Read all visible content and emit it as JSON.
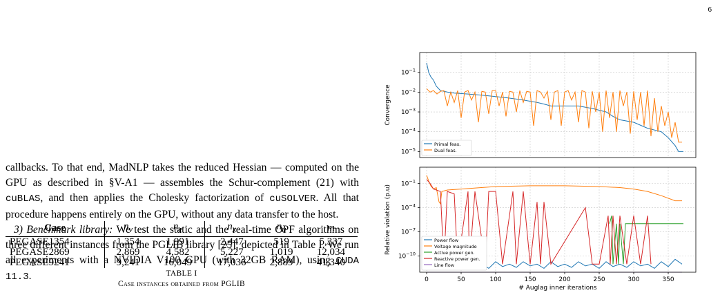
{
  "page_number": "6",
  "text": {
    "p1": [
      {
        "t": "callbacks. To that end, MadNLP takes the reduced Hessian — computed on the GPU as described in §V-A1 — assembles the Schur-complement (21) with "
      },
      {
        "t": "cuBLAS",
        "mono": true
      },
      {
        "t": ", and then applies the Cholesky factorization of "
      },
      {
        "t": "cuSOLVER",
        "mono": true
      },
      {
        "t": ". All that procedure happens entirely on the GPU, without any data transfer to the host."
      }
    ],
    "p2_heading": "3) Benchmark library:",
    "p2": [
      {
        "t": " We test the static and the real-time OPF algorithms on three different instances from the PGLIB library [25], depicted in Table I. We run all experiments with a NVIDIA V100 GPU (with 32GB RAM), using "
      },
      {
        "t": "CUDA 11.3",
        "mono": true
      },
      {
        "t": "."
      }
    ]
  },
  "table": {
    "headers": [
      "Case",
      "n_v",
      "n_e",
      "n_x",
      "n_u",
      "m"
    ],
    "header_display": [
      {
        "base": "Case",
        "sub": ""
      },
      {
        "base": "n",
        "sub": "v"
      },
      {
        "base": "n",
        "sub": "e"
      },
      {
        "base": "n",
        "sub": "x"
      },
      {
        "base": "n",
        "sub": "u"
      },
      {
        "base": "m",
        "sub": ""
      }
    ],
    "rows": [
      [
        "PEGASE1354",
        "1,354",
        "1,991",
        "2,447",
        "519",
        "5,337"
      ],
      [
        "PEGASE2869",
        "2,869",
        "4,582",
        "5,227",
        "1,019",
        "12,034"
      ],
      [
        "PEGASE9241",
        "9,241",
        "16,049",
        "17,036",
        "2,889",
        "41,340"
      ]
    ],
    "caption_label": "TABLE I",
    "caption_text": "Case instances obtained from PGLIB"
  },
  "chart_data": [
    {
      "type": "line",
      "title": "",
      "xlabel": "",
      "ylabel": "Convergence",
      "y_scale": "log",
      "ylim": [
        5e-06,
        1
      ],
      "xlim": [
        -10,
        390
      ],
      "y_ticks": [
        {
          "v": 0.1,
          "base": "10",
          "exp": "−1"
        },
        {
          "v": 0.01,
          "base": "10",
          "exp": "−2"
        },
        {
          "v": 0.001,
          "base": "10",
          "exp": "−3"
        },
        {
          "v": 0.0001,
          "base": "10",
          "exp": "−4"
        },
        {
          "v": 1e-05,
          "base": "10",
          "exp": "−5"
        }
      ],
      "grid": true,
      "legend_position": "bottom-left",
      "series": [
        {
          "name": "Primal feas.",
          "color": "#1f77b4",
          "x": [
            0,
            3,
            6,
            10,
            14,
            20,
            30,
            40,
            60,
            80,
            100,
            120,
            140,
            160,
            170,
            180,
            200,
            220,
            240,
            260,
            270,
            280,
            300,
            320,
            340,
            350,
            360,
            365,
            370,
            372
          ],
          "y": [
            0.3,
            0.1,
            0.06,
            0.04,
            0.02,
            0.012,
            0.01,
            0.009,
            0.008,
            0.007,
            0.006,
            0.005,
            0.004,
            0.003,
            0.0025,
            0.002,
            0.002,
            0.002,
            0.0015,
            0.001,
            0.0006,
            0.0004,
            0.0003,
            0.00015,
            0.0001,
            5e-05,
            2e-05,
            1e-05,
            1e-05,
            1e-05
          ]
        },
        {
          "name": "Dual feas.",
          "color": "#ff7f0e",
          "x": [
            0,
            5,
            10,
            15,
            20,
            25,
            30,
            35,
            40,
            45,
            50,
            55,
            60,
            65,
            70,
            75,
            80,
            85,
            90,
            95,
            100,
            105,
            110,
            115,
            120,
            125,
            130,
            135,
            140,
            145,
            150,
            155,
            160,
            165,
            170,
            175,
            180,
            185,
            190,
            195,
            200,
            205,
            210,
            215,
            220,
            225,
            230,
            235,
            240,
            245,
            250,
            255,
            260,
            265,
            270,
            275,
            280,
            285,
            290,
            295,
            300,
            305,
            310,
            315,
            320,
            325,
            330,
            335,
            340,
            345,
            350,
            355,
            360,
            365,
            370
          ],
          "y": [
            0.015,
            0.01,
            0.012,
            0.008,
            0.011,
            0.012,
            0.002,
            0.01,
            0.003,
            0.012,
            0.0005,
            0.01,
            0.012,
            0.004,
            0.01,
            0.0003,
            0.011,
            0.01,
            0.0008,
            0.012,
            0.012,
            0.002,
            0.01,
            0.0006,
            0.011,
            0.01,
            0.001,
            0.012,
            0.003,
            0.011,
            0.01,
            0.0002,
            0.012,
            0.01,
            0.005,
            0.011,
            0.0004,
            0.01,
            0.012,
            0.0002,
            0.01,
            0.012,
            0.004,
            0.01,
            0.0003,
            0.012,
            0.01,
            0.00015,
            0.011,
            0.001,
            0.01,
            0.0001,
            0.012,
            0.0005,
            0.01,
            0.0001,
            0.012,
            0.002,
            0.01,
            8e-05,
            0.011,
            0.0004,
            0.01,
            0.0002,
            0.012,
            6e-05,
            0.005,
            0.0001,
            0.002,
            0.0002,
            0.001,
            5e-05,
            0.0003,
            3e-05,
            3e-05
          ]
        }
      ]
    },
    {
      "type": "line",
      "title": "",
      "xlabel": "# Auglag inner iterations",
      "ylabel": "Relative violation (p.u)",
      "y_scale": "log",
      "ylim": [
        1e-12,
        10
      ],
      "xlim": [
        -10,
        390
      ],
      "x_ticks": [
        0,
        50,
        100,
        150,
        200,
        250,
        300,
        350
      ],
      "y_ticks": [
        {
          "v": 0.1,
          "base": "10",
          "exp": "−1"
        },
        {
          "v": 0.0001,
          "base": "10",
          "exp": "−4"
        },
        {
          "v": 1e-07,
          "base": "10",
          "exp": "−7"
        },
        {
          "v": 1e-10,
          "base": "10",
          "exp": "−10"
        }
      ],
      "grid": true,
      "legend_position": "bottom-left",
      "series": [
        {
          "name": "Power flow",
          "color": "#1f77b4",
          "x": [
            0,
            10,
            20,
            30,
            40,
            50,
            60,
            70,
            80,
            90,
            100,
            110,
            120,
            130,
            140,
            150,
            160,
            170,
            180,
            190,
            200,
            210,
            220,
            230,
            240,
            250,
            260,
            270,
            280,
            290,
            300,
            310,
            320,
            330,
            340,
            350,
            360,
            370
          ],
          "y": [
            1e-11,
            3e-12,
            2e-11,
            5e-12,
            1e-11,
            4e-12,
            2e-11,
            6e-12,
            1e-11,
            3e-12,
            2e-11,
            5e-12,
            1e-11,
            4e-12,
            2e-11,
            6e-12,
            1e-11,
            3e-12,
            2e-11,
            5e-12,
            1e-11,
            4e-12,
            2e-11,
            6e-12,
            1e-11,
            3e-12,
            2e-11,
            5e-12,
            1e-11,
            4e-12,
            2e-11,
            6e-12,
            1e-11,
            3e-12,
            2e-11,
            5e-12,
            4e-11,
            1e-11
          ]
        },
        {
          "name": "Voltage magnitude",
          "color": "#ff7f0e",
          "x": [
            0,
            3,
            6,
            10,
            14,
            18,
            20,
            22,
            30,
            50,
            100,
            150,
            200,
            250,
            280,
            300,
            320,
            340,
            360,
            370
          ],
          "y": [
            1,
            0.2,
            0.05,
            0.02,
            0.03,
            0.0005,
            0.0003,
            0.01,
            0.015,
            0.02,
            0.04,
            0.05,
            0.05,
            0.04,
            0.03,
            0.02,
            0.01,
            0.003,
            0.0007,
            0.0007
          ]
        },
        {
          "name": "Active power gen.",
          "color": "#2ca02c",
          "x": [
            265,
            268,
            270,
            275,
            278,
            280,
            285,
            288,
            290,
            300,
            320,
            340,
            360,
            372
          ],
          "y": [
            1e-06,
            1e-05,
            1e-11,
            1e-06,
            1e-11,
            1e-06,
            1e-11,
            1e-06,
            1e-06,
            1e-06,
            1e-06,
            1e-06,
            1e-06,
            1e-06
          ]
        },
        {
          "name": "Reactive power gen.",
          "color": "#d62728",
          "x": [
            0,
            5,
            10,
            20,
            25,
            30,
            40,
            45,
            60,
            62,
            70,
            85,
            90,
            100,
            110,
            125,
            130,
            140,
            150,
            160,
            165,
            170,
            180,
            230,
            240,
            250,
            263,
            266,
            270,
            275,
            280,
            290,
            300,
            310,
            320,
            325
          ],
          "y": [
            0.3,
            0.1,
            0.02,
            0.01,
            1e-11,
            0.01,
            0.005,
            1e-11,
            0.01,
            1e-11,
            0.01,
            1e-11,
            0.01,
            0.01,
            1e-11,
            0.01,
            1e-11,
            0.01,
            1e-11,
            0.0005,
            1e-11,
            0.0005,
            1e-11,
            0.0001,
            1e-11,
            1e-11,
            1e-05,
            1e-11,
            1e-05,
            1e-11,
            1e-05,
            1e-11,
            1e-05,
            1e-11,
            1e-05,
            1e-11
          ]
        },
        {
          "name": "Line flow",
          "color": "#9467bd",
          "x": [
            0,
            370
          ],
          "y": [
            1e-12,
            1e-12
          ]
        }
      ]
    }
  ]
}
